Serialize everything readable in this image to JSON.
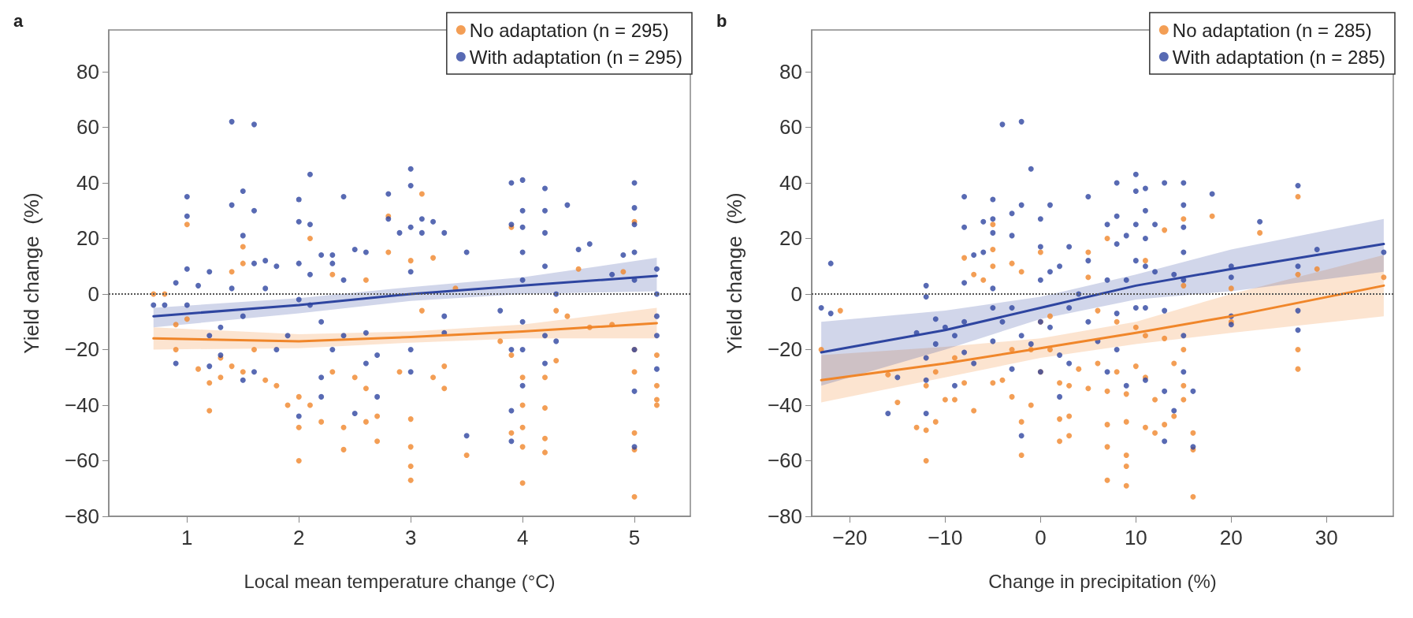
{
  "chart_data": [
    {
      "type": "scatter",
      "title": "a",
      "xlabel": "Local mean temperature change (°C)",
      "ylabel": "Yield change  (%)",
      "xlim": [
        0.3,
        5.5
      ],
      "ylim": [
        -80,
        95
      ],
      "xticks": [
        1,
        2,
        3,
        4,
        5
      ],
      "yticks": [
        -80,
        -60,
        -40,
        -20,
        0,
        20,
        40,
        60,
        80
      ],
      "grid": false,
      "legend": "top right",
      "marker": "circle",
      "ref_lines": [
        {
          "axis": "y",
          "value": 0,
          "color": "#555555",
          "line_style": "dotted"
        }
      ],
      "series": [
        {
          "name": "No adaptation (n = 295)",
          "color": "#f0862a",
          "x": [
            0.7,
            0.8,
            0.9,
            0.9,
            1,
            1,
            1.1,
            1.2,
            1.2,
            1.3,
            1.3,
            1.4,
            1.4,
            1.5,
            1.5,
            1.5,
            1.6,
            1.7,
            1.8,
            1.9,
            2,
            2,
            2,
            2.1,
            2.1,
            2.2,
            2.3,
            2.3,
            2.4,
            2.4,
            2.5,
            2.6,
            2.6,
            2.6,
            2.7,
            2.7,
            2.8,
            2.8,
            2.9,
            3,
            3,
            3,
            3,
            3,
            3.1,
            3.1,
            3.2,
            3.2,
            3.3,
            3.3,
            3.4,
            3.5,
            3.8,
            3.9,
            3.9,
            3.9,
            4,
            4,
            4,
            4,
            4,
            4.2,
            4.2,
            4.2,
            4.2,
            4.3,
            4.3,
            4.4,
            4.5,
            4.6,
            4.8,
            4.9,
            5,
            5,
            5,
            5,
            5,
            5,
            5.2,
            5.2,
            5.2,
            5.2
          ],
          "values": [
            0,
            0,
            -11,
            -20,
            25,
            -9,
            -27,
            -32,
            -42,
            -23,
            -30,
            8,
            -26,
            17,
            11,
            -28,
            -20,
            -31,
            -33,
            -40,
            -48,
            -60,
            -37,
            20,
            -40,
            -46,
            7,
            -28,
            -48,
            -56,
            -30,
            5,
            -34,
            -46,
            -44,
            -53,
            28,
            15,
            -28,
            -45,
            -55,
            -62,
            -67,
            12,
            36,
            -6,
            13,
            -30,
            -26,
            -34,
            2,
            -58,
            -17,
            -50,
            24,
            -22,
            -48,
            -55,
            -68,
            -30,
            -40,
            -52,
            -57,
            -41,
            -30,
            -6,
            -24,
            -8,
            9,
            -12,
            -11,
            8,
            -50,
            -56,
            -73,
            -28,
            26,
            -20,
            -38,
            -40,
            -33,
            -22
          ]
        },
        {
          "name": "With adaptation (n = 295)",
          "color": "#2e45a0",
          "x": [
            0.7,
            0.8,
            0.9,
            0.9,
            1,
            1,
            1,
            1,
            1.1,
            1.2,
            1.2,
            1.2,
            1.3,
            1.3,
            1.4,
            1.4,
            1.4,
            1.5,
            1.5,
            1.5,
            1.5,
            1.6,
            1.6,
            1.6,
            1.6,
            1.7,
            1.7,
            1.8,
            1.8,
            1.9,
            2,
            2,
            2,
            2,
            2,
            2.1,
            2.1,
            2.1,
            2.1,
            2.2,
            2.2,
            2.2,
            2.2,
            2.3,
            2.3,
            2.3,
            2.4,
            2.4,
            2.4,
            2.5,
            2.5,
            2.6,
            2.6,
            2.6,
            2.7,
            2.7,
            2.8,
            2.8,
            2.9,
            3,
            3,
            3,
            3,
            3,
            3,
            3.1,
            3.1,
            3.2,
            3.3,
            3.3,
            3.3,
            3.5,
            3.5,
            3.8,
            3.9,
            3.9,
            3.9,
            3.9,
            3.9,
            4,
            4,
            4,
            4,
            4,
            4,
            4,
            4,
            4.2,
            4.2,
            4.2,
            4.2,
            4.2,
            4.2,
            4.3,
            4.3,
            4.4,
            4.5,
            4.6,
            4.8,
            4.9,
            5,
            5,
            5,
            5,
            5,
            5,
            5,
            5,
            5.2,
            5.2,
            5.2,
            5.2,
            5.2
          ],
          "values": [
            -4,
            -4,
            4,
            -25,
            35,
            28,
            9,
            -4,
            3,
            8,
            -15,
            -26,
            -12,
            -22,
            62,
            32,
            2,
            37,
            21,
            -31,
            -8,
            61,
            30,
            11,
            -28,
            12,
            2,
            10,
            -20,
            -15,
            34,
            26,
            11,
            -2,
            -44,
            43,
            25,
            7,
            -4,
            14,
            -10,
            -30,
            -37,
            14,
            11,
            -20,
            35,
            5,
            -15,
            16,
            -43,
            15,
            -14,
            -25,
            -22,
            -37,
            36,
            27,
            22,
            24,
            8,
            -20,
            -28,
            45,
            39,
            27,
            22,
            26,
            22,
            -8,
            -14,
            15,
            -51,
            -6,
            25,
            -20,
            -42,
            -53,
            40,
            41,
            30,
            24,
            15,
            5,
            -10,
            -20,
            -33,
            38,
            30,
            22,
            10,
            -15,
            -25,
            -17,
            0,
            32,
            16,
            18,
            7,
            14,
            40,
            31,
            25,
            15,
            5,
            -20,
            -35,
            -55,
            9,
            0,
            -8,
            -15,
            -27
          ]
        },
        {
          "type": "line",
          "marker": "none",
          "color": "#f0862a",
          "x": [
            0.7,
            2,
            3,
            4,
            5.2
          ],
          "values": [
            -16,
            -17,
            -15.5,
            -13.5,
            -10.5
          ],
          "lower": [
            -20,
            -19.5,
            -17.5,
            -16,
            -16
          ],
          "upper": [
            -12,
            -14.5,
            -13.5,
            -11,
            -5
          ]
        },
        {
          "type": "line",
          "marker": "none",
          "color": "#2e45a0",
          "x": [
            0.7,
            2,
            3,
            4,
            5.2
          ],
          "values": [
            -8,
            -4,
            0,
            3,
            6.5
          ],
          "lower": [
            -12,
            -7,
            -2.5,
            0,
            1
          ],
          "upper": [
            -5,
            -1.5,
            2.5,
            6,
            13
          ]
        }
      ]
    },
    {
      "type": "scatter",
      "title": "b",
      "xlabel": "Change in precipitation (%)",
      "ylabel": "Yield change  (%)",
      "xlim": [
        -24,
        37
      ],
      "ylim": [
        -80,
        95
      ],
      "xticks": [
        -20,
        -10,
        0,
        10,
        20,
        30
      ],
      "yticks": [
        -80,
        -60,
        -40,
        -20,
        0,
        20,
        40,
        60,
        80
      ],
      "grid": false,
      "legend": "top right",
      "marker": "circle",
      "ref_lines": [
        {
          "axis": "y",
          "value": 0,
          "color": "#555555",
          "line_style": "dotted"
        }
      ],
      "series": [
        {
          "name": "No adaptation (n = 285)",
          "color": "#f0862a",
          "x": [
            -23,
            -21,
            -16,
            -15,
            -13,
            -12,
            -12,
            -12,
            -11,
            -11,
            -10,
            -9,
            -9,
            -8,
            -8,
            -7,
            -7,
            -6,
            -5,
            -5,
            -5,
            -5,
            -4,
            -3,
            -3,
            -3,
            -2,
            -2,
            -2,
            -1,
            -1,
            0,
            0,
            0,
            1,
            1,
            2,
            2,
            2,
            3,
            3,
            3,
            4,
            5,
            5,
            5,
            6,
            6,
            7,
            7,
            7,
            7,
            7,
            8,
            8,
            9,
            9,
            9,
            9,
            9,
            10,
            10,
            11,
            11,
            11,
            11,
            12,
            12,
            13,
            13,
            13,
            14,
            14,
            15,
            15,
            15,
            15,
            15,
            16,
            16,
            16,
            18,
            20,
            20,
            23,
            27,
            27,
            27,
            27,
            29,
            36
          ],
          "values": [
            -20,
            -6,
            -29,
            -39,
            -48,
            -60,
            -49,
            -33,
            -46,
            -28,
            -38,
            -38,
            -23,
            13,
            -32,
            7,
            -42,
            5,
            25,
            16,
            10,
            -32,
            -31,
            11,
            -37,
            -20,
            8,
            -46,
            -58,
            -40,
            -20,
            15,
            -10,
            -28,
            -8,
            -20,
            -32,
            -45,
            -53,
            -44,
            -51,
            -33,
            -27,
            15,
            6,
            -34,
            -6,
            -25,
            20,
            -35,
            -47,
            -55,
            -67,
            -28,
            -10,
            -58,
            -62,
            -69,
            -46,
            -36,
            -26,
            -12,
            12,
            -15,
            -30,
            -48,
            -38,
            -50,
            23,
            -47,
            -16,
            -44,
            -25,
            27,
            3,
            -38,
            -33,
            -20,
            -50,
            -56,
            -73,
            28,
            2,
            -10,
            22,
            35,
            7,
            -20,
            -27,
            9,
            6
          ]
        },
        {
          "name": "With adaptation (n = 285)",
          "color": "#2e45a0",
          "x": [
            -23,
            -22,
            -22,
            -16,
            -15,
            -13,
            -12,
            -12,
            -12,
            -12,
            -12,
            -11,
            -11,
            -10,
            -9,
            -9,
            -8,
            -8,
            -8,
            -8,
            -8,
            -7,
            -7,
            -6,
            -6,
            -5,
            -5,
            -5,
            -5,
            -5,
            -5,
            -4,
            -3,
            -3,
            -3,
            -3,
            -2,
            -4,
            -2,
            -2,
            -2,
            -1,
            -1,
            0,
            0,
            0,
            0,
            0,
            1,
            1,
            1,
            2,
            2,
            2,
            3,
            3,
            3,
            4,
            5,
            5,
            5,
            6,
            7,
            7,
            7,
            8,
            8,
            8,
            8,
            8,
            9,
            9,
            9,
            10,
            10,
            10,
            10,
            10,
            11,
            11,
            11,
            11,
            11,
            11,
            12,
            12,
            13,
            13,
            13,
            13,
            14,
            14,
            15,
            15,
            15,
            15,
            15,
            15,
            15,
            16,
            16,
            18,
            20,
            20,
            20,
            20,
            23,
            27,
            27,
            27,
            27,
            29,
            36
          ],
          "values": [
            -5,
            11,
            -7,
            -43,
            -30,
            -14,
            3,
            -1,
            -23,
            -31,
            -43,
            -9,
            -18,
            -12,
            -15,
            -33,
            35,
            24,
            4,
            -10,
            -21,
            14,
            -25,
            26,
            15,
            34,
            27,
            22,
            2,
            -5,
            -17,
            -10,
            29,
            21,
            -5,
            -27,
            62,
            61,
            32,
            -15,
            -51,
            45,
            -18,
            27,
            17,
            5,
            -10,
            -28,
            32,
            8,
            -12,
            10,
            -22,
            -37,
            17,
            -5,
            -25,
            0,
            35,
            12,
            -10,
            -17,
            25,
            5,
            -28,
            40,
            28,
            18,
            -7,
            -20,
            21,
            5,
            -33,
            43,
            37,
            25,
            12,
            -5,
            38,
            30,
            20,
            10,
            -5,
            -31,
            25,
            8,
            40,
            -6,
            -35,
            -53,
            7,
            -42,
            40,
            32,
            24,
            15,
            5,
            -15,
            -28,
            -35,
            -55,
            36,
            10,
            6,
            -8,
            -11,
            26,
            39,
            10,
            -6,
            -13,
            16,
            15
          ]
        },
        {
          "type": "line",
          "marker": "none",
          "color": "#f0862a",
          "x": [
            -23,
            -10,
            0,
            10,
            20,
            36
          ],
          "values": [
            -31,
            -25,
            -19.5,
            -14,
            -8,
            3
          ],
          "lower": [
            -39,
            -30,
            -23,
            -18,
            -14,
            -8
          ],
          "upper": [
            -22,
            -19,
            -16,
            -10,
            0,
            14
          ]
        },
        {
          "type": "line",
          "marker": "none",
          "color": "#2e45a0",
          "x": [
            -23,
            -10,
            0,
            10,
            20,
            36
          ],
          "values": [
            -21,
            -13,
            -5,
            3,
            9,
            18
          ],
          "lower": [
            -33,
            -20,
            -9,
            -2,
            1,
            8
          ],
          "upper": [
            -10,
            -6,
            -1,
            7,
            16,
            27
          ]
        }
      ]
    }
  ]
}
